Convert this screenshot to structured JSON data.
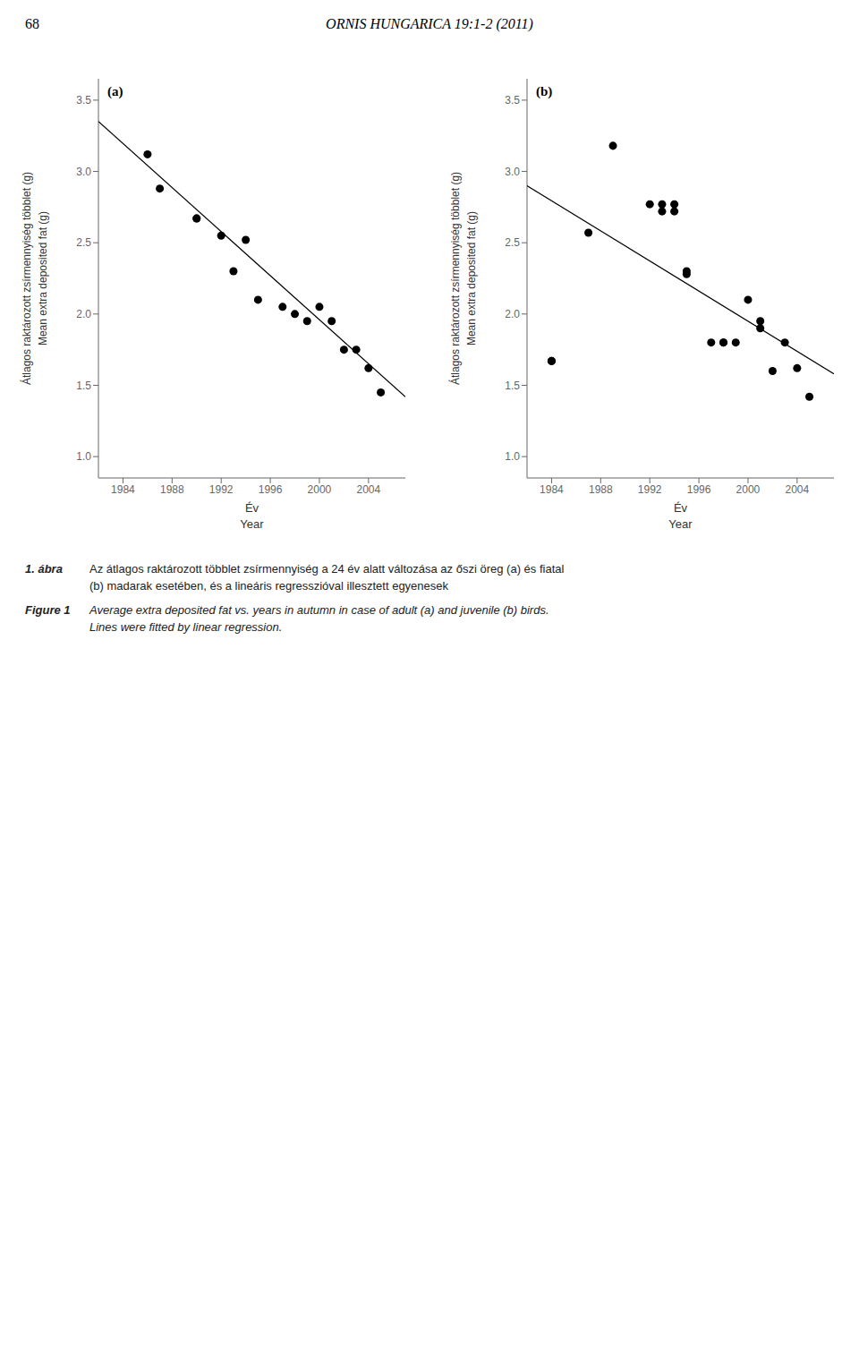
{
  "chart_data": [
    {
      "type": "scatter",
      "title": "(a)",
      "xlabel": [
        "Év",
        "Year"
      ],
      "ylabel": [
        "Átlagos raktározott zsírmennyiség többlet (g)",
        "Mean extra deposited fat (g)"
      ],
      "xlim": [
        1982,
        2007
      ],
      "ylim": [
        0.85,
        3.65
      ],
      "xticks": [
        1984,
        1988,
        1992,
        1996,
        2000,
        2004
      ],
      "yticks": [
        {
          "value": 1.0,
          "label": "1.0"
        },
        1.5,
        {
          "value": 2.0,
          "label": "2.0"
        },
        2.5,
        {
          "value": 3.0,
          "label": "3.0"
        },
        3.5
      ],
      "grid": false,
      "series": [
        {
          "type": "scatter",
          "color": "#000000",
          "x": [
            1986,
            1987,
            1990,
            1990,
            1992,
            1993,
            1994,
            1995,
            1997,
            1998,
            1999,
            2000,
            2001,
            2002,
            2003,
            2004,
            2005
          ],
          "values": [
            3.12,
            2.88,
            2.67,
            2.67,
            2.55,
            2.3,
            2.52,
            2.1,
            2.05,
            2.0,
            1.95,
            2.05,
            1.95,
            1.75,
            1.75,
            1.62,
            1.45
          ]
        },
        {
          "type": "line",
          "color": "#000000",
          "x": [
            1982,
            2007
          ],
          "values": [
            3.35,
            1.42
          ]
        }
      ],
      "annotations": [
        "68",
        "ORNIS HUNGARICA 19:1-2 (2011)",
        "1. ábra",
        "Az átlagos raktározott többlet zsírmennyiség a 24 év alatt változása az őszi öreg (a) és fiatal",
        "(b) madarak esetében, és a lineáris regresszióval illesztett egyenesek",
        "Figure 1",
        "Average extra deposited fat vs. years in autumn in case of adult (a) and juvenile (b) birds.",
        "Lines were fitted by linear regression."
      ]
    },
    {
      "type": "scatter",
      "title": "(b)",
      "xlabel": [
        "Év",
        "Year"
      ],
      "ylabel": [
        "Átlagos raktározott zsírmennyiség többlet (g)",
        "Mean extra deposited fat (g)"
      ],
      "xlim": [
        1982,
        2007
      ],
      "ylim": [
        0.85,
        3.65
      ],
      "xticks": [
        1984,
        1988,
        1992,
        1996,
        2000,
        2004
      ],
      "yticks": [
        {
          "value": 1.0,
          "label": "1.0"
        },
        1.5,
        {
          "value": 2.0,
          "label": "2.0"
        },
        2.5,
        {
          "value": 3.0,
          "label": "3.0"
        },
        3.5
      ],
      "grid": false,
      "series": [
        {
          "type": "scatter",
          "color": "#000000",
          "x": [
            1984,
            1984,
            1987,
            1989,
            1992,
            1993,
            1993,
            1994,
            1994,
            1995,
            1995,
            1997,
            1998,
            1998,
            1999,
            2000,
            2001,
            2001,
            2002,
            2003,
            2004,
            2005
          ],
          "values": [
            1.67,
            1.67,
            2.57,
            3.18,
            2.77,
            2.77,
            2.72,
            2.77,
            2.72,
            2.3,
            2.28,
            1.8,
            1.8,
            1.8,
            1.8,
            2.1,
            1.95,
            1.9,
            1.6,
            1.8,
            1.62,
            1.42
          ]
        },
        {
          "type": "line",
          "color": "#000000",
          "x": [
            1982,
            2007
          ],
          "values": [
            2.9,
            1.58
          ]
        }
      ]
    }
  ]
}
